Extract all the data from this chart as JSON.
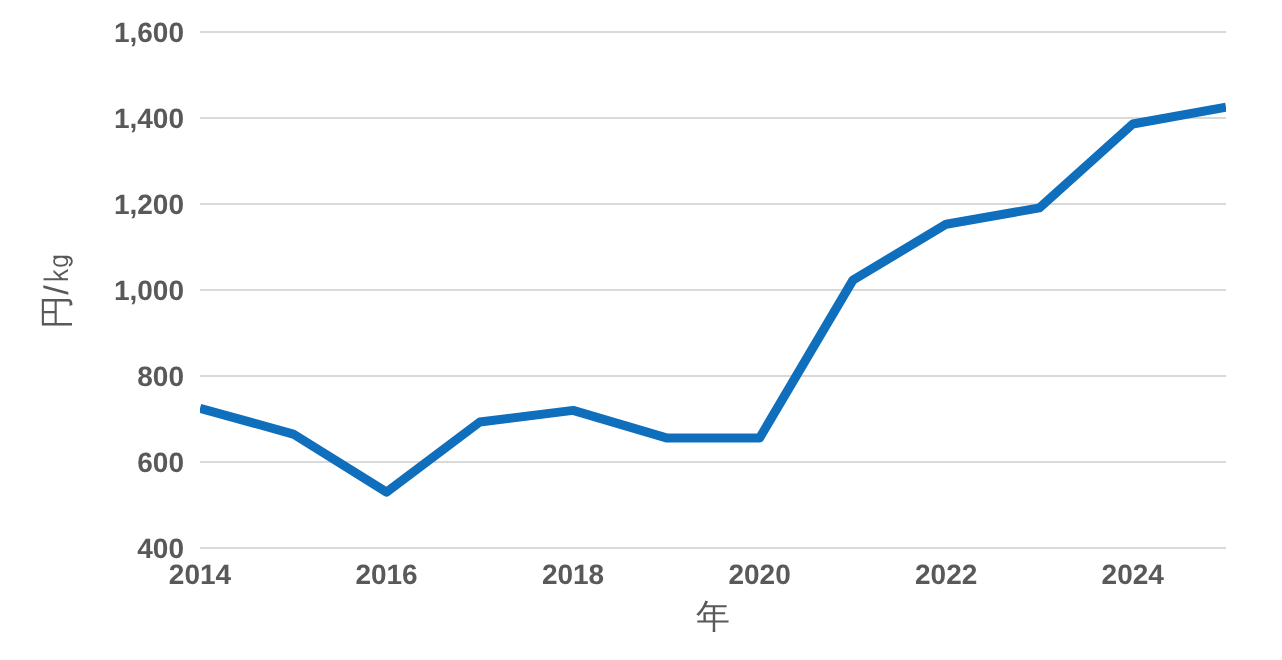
{
  "chart_data": {
    "type": "line",
    "xlabel": "年",
    "ylabel": "円/㎏",
    "x": [
      2014,
      2015,
      2016,
      2017,
      2018,
      2019,
      2020,
      2021,
      2022,
      2023,
      2024,
      2025
    ],
    "series": [
      {
        "color": "#0f6fbd",
        "values": [
          725,
          665,
          530,
          693,
          720,
          656,
          656,
          1023,
          1153,
          1191,
          1386,
          1425
        ]
      }
    ],
    "xlim": [
      2014,
      2025
    ],
    "xticks": [
      2014,
      2016,
      2018,
      2020,
      2022,
      2024
    ],
    "ylim": [
      400,
      1600
    ],
    "yticks": [
      400,
      600,
      800,
      {
        "value": 1000,
        "label": "1,000"
      },
      {
        "value": 1200,
        "label": "1,200"
      },
      {
        "value": 1400,
        "label": "1,400"
      },
      {
        "value": 1600,
        "label": "1,600"
      }
    ],
    "grid": "y",
    "marker": "none",
    "line_style": "solid"
  }
}
